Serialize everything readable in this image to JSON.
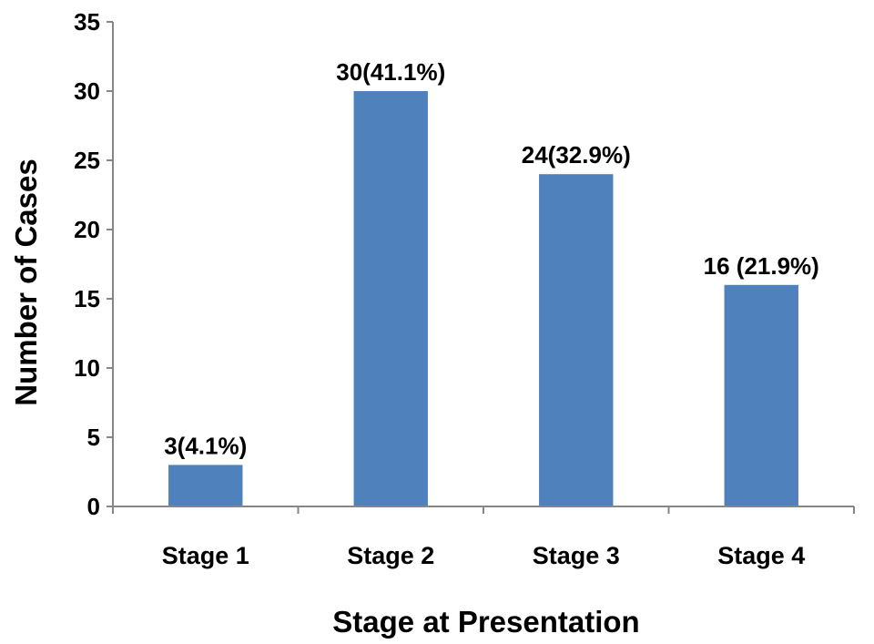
{
  "chart_data": {
    "type": "bar",
    "categories": [
      "Stage 1",
      "Stage 2",
      "Stage 3",
      "Stage 4"
    ],
    "values": [
      3,
      30,
      24,
      16
    ],
    "data_labels": [
      "3(4.1%)",
      "30(41.1%)",
      "24(32.9%)",
      "16 (21.9%)"
    ],
    "title": "",
    "xlabel": "Stage at Presentation",
    "ylabel": "Number of Cases",
    "ylim": [
      0,
      35
    ],
    "yticks": [
      0,
      5,
      10,
      15,
      20,
      25,
      30,
      35
    ],
    "grid": false,
    "bar_color": "#4F81BD",
    "axis_color": "#868686"
  }
}
